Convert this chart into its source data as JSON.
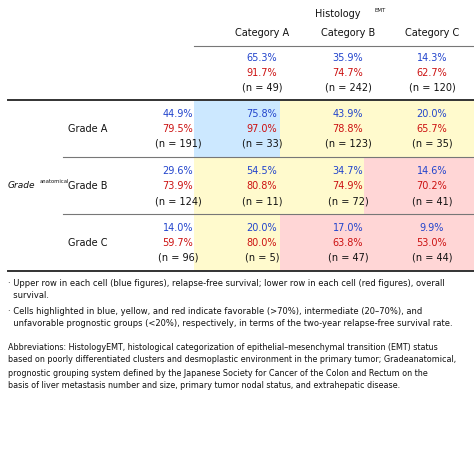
{
  "col_headers": [
    "Category A",
    "Category B",
    "Category C"
  ],
  "overall_row": {
    "blue": [
      "65.3%",
      "35.9%",
      "14.3%"
    ],
    "red": [
      "91.7%",
      "74.7%",
      "62.7%"
    ],
    "n": [
      "(n = 49)",
      "(n = 242)",
      "(n = 120)"
    ]
  },
  "grades": [
    {
      "label": "Grade A",
      "col0_blue": "44.9%",
      "col0_red": "79.5%",
      "col0_n": "(n = 191)",
      "cells": [
        {
          "blue": "75.8%",
          "red": "97.0%",
          "n": "(n = 33)",
          "bg": "#cce8ff"
        },
        {
          "blue": "43.9%",
          "red": "78.8%",
          "n": "(n = 123)",
          "bg": "#fffacd"
        },
        {
          "blue": "20.0%",
          "red": "65.7%",
          "n": "(n = 35)",
          "bg": "#fffacd"
        }
      ]
    },
    {
      "label": "Grade B",
      "col0_blue": "29.6%",
      "col0_red": "73.9%",
      "col0_n": "(n = 124)",
      "cells": [
        {
          "blue": "54.5%",
          "red": "80.8%",
          "n": "(n = 11)",
          "bg": "#fffacd"
        },
        {
          "blue": "34.7%",
          "red": "74.9%",
          "n": "(n = 72)",
          "bg": "#fffacd"
        },
        {
          "blue": "14.6%",
          "red": "70.2%",
          "n": "(n = 41)",
          "bg": "#ffd6d6"
        }
      ]
    },
    {
      "label": "Grade C",
      "col0_blue": "14.0%",
      "col0_red": "59.7%",
      "col0_n": "(n = 96)",
      "cells": [
        {
          "blue": "20.0%",
          "red": "80.0%",
          "n": "(n = 5)",
          "bg": "#fffacd"
        },
        {
          "blue": "17.0%",
          "red": "63.8%",
          "n": "(n = 47)",
          "bg": "#ffd6d6"
        },
        {
          "blue": "9.9%",
          "red": "53.0%",
          "n": "(n = 44)",
          "bg": "#ffd6d6"
        }
      ]
    }
  ],
  "footnote1": "· Upper row in each cell (blue figures), relapse-free survival; lower row in each cell (red figures), overall survival.",
  "footnote1b": "  survival.",
  "footnote2": "· Cells highlighted in blue, yellow, and red indicate favorable (>70%), intermediate (20–70%), and",
  "footnote2b": "  unfavorable prognostic groups (<20%), respectively, in terms of the two-year relapse-free survival rate.",
  "abbrev_lines": [
    "Abbreviations: HistologyEMT, histological categorization of epithelial–mesenchymal transition (EMT) status",
    "based on poorly differentiated clusters and desmoplastic environment in the primary tumor; Gradeanatomical,",
    "prognostic grouping system defined by the Japanese Society for Cancer of the Colon and Rectum on the",
    "basis of liver metastasis number and size, primary tumor nodal status, and extrahepatic disease."
  ],
  "blue_color": "#2244cc",
  "red_color": "#cc1111",
  "black_color": "#111111",
  "bg_white": "#ffffff"
}
